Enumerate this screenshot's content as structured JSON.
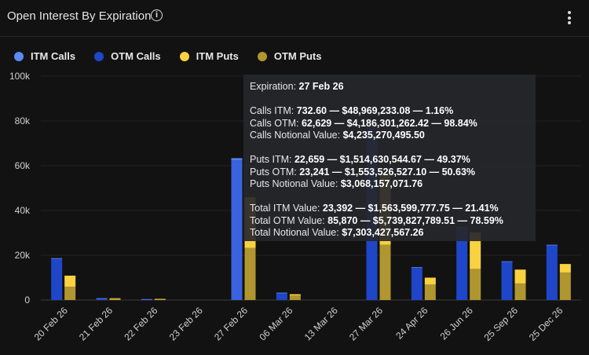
{
  "header": {
    "title": "Open Interest By Expiration",
    "info_icon": "info-icon",
    "menu_icon": "kebab-menu-icon"
  },
  "legend": [
    {
      "label": "ITM Calls",
      "color": "#5b8af5"
    },
    {
      "label": "OTM Calls",
      "color": "#1f46c8"
    },
    {
      "label": "ITM Puts",
      "color": "#f8d240"
    },
    {
      "label": "OTM Puts",
      "color": "#b0962e"
    }
  ],
  "chart_data": {
    "type": "bar",
    "stacked": true,
    "categories": [
      "20 Feb 26",
      "21 Feb 26",
      "22 Feb 26",
      "23 Feb 26",
      "27 Feb 26",
      "06 Mar 26",
      "13 Mar 26",
      "27 Mar 26",
      "24 Apr 26",
      "26 Jun 26",
      "25 Sep 26",
      "25 Dec 26"
    ],
    "series": [
      {
        "name": "OTM Calls",
        "stack": "calls",
        "color": "#1f46c8",
        "values": [
          18400,
          750,
          380,
          0,
          62629,
          3200,
          0,
          76800,
          14500,
          32200,
          17100,
          24500
        ]
      },
      {
        "name": "ITM Calls",
        "stack": "calls",
        "color": "#5b8af5",
        "values": [
          300,
          50,
          20,
          0,
          733,
          100,
          0,
          500,
          200,
          400,
          200,
          200
        ]
      },
      {
        "name": "OTM Puts",
        "stack": "puts",
        "color": "#b0962e",
        "values": [
          5900,
          500,
          300,
          0,
          23241,
          2000,
          0,
          24700,
          6900,
          13900,
          7400,
          12300
        ]
      },
      {
        "name": "ITM Puts",
        "stack": "puts",
        "color": "#f8d240",
        "values": [
          5000,
          300,
          200,
          0,
          22659,
          600,
          0,
          31500,
          3100,
          16400,
          6200,
          3800
        ]
      }
    ],
    "highlighted_category": "27 Feb 26",
    "ylim": [
      0,
      100000
    ],
    "yticks": [
      "0",
      "20k",
      "40k",
      "60k",
      "80k",
      "100k"
    ],
    "grid": true,
    "legend_position": "top-left"
  },
  "tooltip": {
    "expiration_label": "Expiration:",
    "expiration_value": "27 Feb 26",
    "calls_itm_label": "Calls ITM:",
    "calls_itm_value": "732.60 — $48,969,233.08 — 1.16%",
    "calls_otm_label": "Calls OTM:",
    "calls_otm_value": "62,629 — $4,186,301,262.42 — 98.84%",
    "calls_notional_label": "Calls Notional Value:",
    "calls_notional_value": "$4,235,270,495.50",
    "puts_itm_label": "Puts ITM:",
    "puts_itm_value": "22,659 — $1,514,630,544.67 — 49.37%",
    "puts_otm_label": "Puts OTM:",
    "puts_otm_value": "23,241 — $1,553,526,527.10 — 50.63%",
    "puts_notional_label": "Puts Notional Value:",
    "puts_notional_value": "$3,068,157,071.76",
    "total_itm_label": "Total ITM Value:",
    "total_itm_value": "23,392 — $1,563,599,777.75 — 21.41%",
    "total_otm_label": "Total OTM Value:",
    "total_otm_value": "85,870 — $5,739,827,789.51 — 78.59%",
    "total_notional_label": "Total Notional Value:",
    "total_notional_value": "$7,303,427,567.26"
  }
}
